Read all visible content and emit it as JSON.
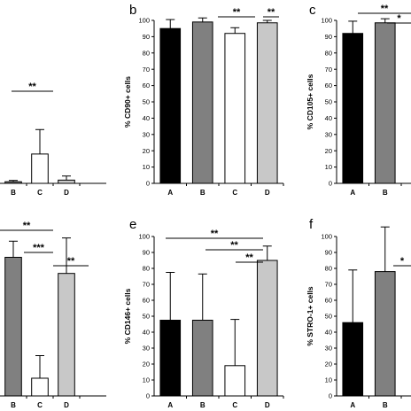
{
  "chart_data": [
    {
      "panel": "",
      "type": "bar",
      "ylabel": "",
      "categories": [
        "B",
        "C",
        "D"
      ],
      "values": [
        1.0,
        18.0,
        2.0
      ],
      "errors": [
        0.8,
        15.0,
        2.5
      ],
      "ylim": [
        0,
        100
      ],
      "grid": false,
      "colors": [
        "#808080",
        "#ffffff",
        "#c8c8c8"
      ],
      "significance": [
        {
          "label": "**",
          "from": "B",
          "to": "C"
        }
      ]
    },
    {
      "panel": "b",
      "type": "bar",
      "ylabel": "% CD90+ cells",
      "categories": [
        "A",
        "B",
        "C",
        "D"
      ],
      "values": [
        95,
        99,
        92,
        98.5
      ],
      "errors": [
        5.5,
        2.5,
        3.5,
        1.5
      ],
      "ylim": [
        0,
        100
      ],
      "yticks": [
        0,
        10,
        20,
        30,
        40,
        50,
        60,
        70,
        80,
        90,
        100
      ],
      "grid": false,
      "colors": [
        "#000000",
        "#808080",
        "#ffffff",
        "#c8c8c8"
      ],
      "significance": [
        {
          "label": "**",
          "from": "B",
          "to": "C"
        },
        {
          "label": "**",
          "from": "C",
          "to": "D"
        }
      ]
    },
    {
      "panel": "c",
      "type": "bar",
      "ylabel": "% CD105+ cells",
      "categories": [
        "A",
        "B"
      ],
      "values": [
        92,
        98.5
      ],
      "errors": [
        7.5,
        2.5
      ],
      "ylim": [
        0,
        100
      ],
      "yticks": [
        0,
        10,
        20,
        30,
        40,
        50,
        60,
        70,
        80,
        90,
        100
      ],
      "grid": false,
      "colors": [
        "#000000",
        "#808080"
      ],
      "significance": [
        {
          "label": "**",
          "from": "A",
          "to": ""
        },
        {
          "label": "*",
          "from": "B",
          "to": ""
        }
      ]
    },
    {
      "panel": "",
      "type": "bar",
      "ylabel": "",
      "categories": [
        "B",
        "C",
        "D"
      ],
      "values": [
        86,
        11,
        76
      ],
      "errors": [
        10,
        14,
        22
      ],
      "ylim": [
        0,
        100
      ],
      "grid": false,
      "colors": [
        "#808080",
        "#ffffff",
        "#c8c8c8"
      ],
      "significance": [
        {
          "label": "**",
          "from": "",
          "to": "C"
        },
        {
          "label": "***",
          "from": "B",
          "to": "C"
        },
        {
          "label": "**",
          "from": "C",
          "to": "D"
        }
      ]
    },
    {
      "panel": "e",
      "type": "bar",
      "ylabel": "% CD146+ cells",
      "categories": [
        "A",
        "B",
        "C",
        "D"
      ],
      "values": [
        47.5,
        47.5,
        19,
        85
      ],
      "errors": [
        30,
        29,
        29,
        9
      ],
      "ylim": [
        0,
        100
      ],
      "yticks": [
        0,
        10,
        20,
        30,
        40,
        50,
        60,
        70,
        80,
        90,
        100
      ],
      "grid": false,
      "colors": [
        "#000000",
        "#808080",
        "#ffffff",
        "#c8c8c8"
      ],
      "significance": [
        {
          "label": "**",
          "from": "A",
          "to": "D"
        },
        {
          "label": "**",
          "from": "B",
          "to": "D"
        },
        {
          "label": "**",
          "from": "C",
          "to": "D"
        }
      ]
    },
    {
      "panel": "f",
      "type": "bar",
      "ylabel": "% STRO-1+ cells",
      "categories": [
        "A",
        "B"
      ],
      "values": [
        46,
        78
      ],
      "errors": [
        33,
        28
      ],
      "ylim": [
        0,
        100
      ],
      "yticks": [
        0,
        10,
        20,
        30,
        40,
        50,
        60,
        70,
        80,
        90,
        100
      ],
      "grid": false,
      "colors": [
        "#000000",
        "#808080"
      ],
      "significance": [
        {
          "label": "*",
          "from": "B",
          "to": ""
        }
      ]
    }
  ]
}
